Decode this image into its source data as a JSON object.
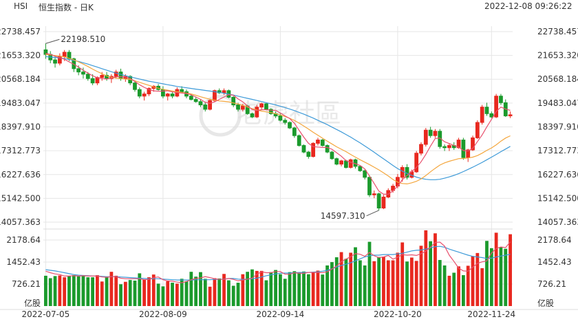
{
  "header": {
    "symbol": "HSI",
    "name": "恒生指数 - 日K",
    "datetime": "2022-12-08 09:26:22"
  },
  "watermark": "老虎社區",
  "colors": {
    "up": "#e8281f",
    "down": "#1b9a2c",
    "ma5": "#e8506d",
    "ma10": "#f4a63c",
    "ma20": "#3d9ad8",
    "grid": "#e6e6e6"
  },
  "chart_data": [
    {
      "type": "candlestick",
      "title": "",
      "y_ticks": [
        "22738.457",
        "21653.320",
        "20568.184",
        "19483.047",
        "18397.910",
        "17312.773",
        "16227.636",
        "15142.500",
        "14057.363"
      ],
      "ylim": [
        14057.363,
        22738.457
      ],
      "x_tick_labels": [
        "2022-07-05",
        "2022-08-09",
        "2022-09-14",
        "2022-10-20",
        "2022-11-24"
      ],
      "annotations": [
        {
          "text": "22198.510",
          "value": 22198.51,
          "at_index": 0
        },
        {
          "text": "14597.310",
          "value": 14597.31,
          "at_index": 71
        }
      ],
      "moving_averages": [
        "MA5",
        "MA10",
        "MA20"
      ],
      "candles_ohlc": [
        [
          21910,
          22198.51,
          21500,
          21700
        ],
        [
          21700,
          21850,
          21300,
          21450
        ],
        [
          21450,
          21600,
          21100,
          21300
        ],
        [
          21300,
          21750,
          21200,
          21600
        ],
        [
          21600,
          21900,
          21400,
          21800
        ],
        [
          21800,
          21900,
          21400,
          21500
        ],
        [
          21500,
          21550,
          20900,
          21050
        ],
        [
          21050,
          21200,
          20750,
          20900
        ],
        [
          20900,
          21100,
          20600,
          20800
        ],
        [
          20800,
          20900,
          20500,
          20600
        ],
        [
          20600,
          20800,
          20300,
          20400
        ],
        [
          20400,
          20700,
          20300,
          20650
        ],
        [
          20650,
          20900,
          20500,
          20750
        ],
        [
          20750,
          20900,
          20500,
          20600
        ],
        [
          20600,
          20800,
          20400,
          20700
        ],
        [
          20700,
          21000,
          20600,
          20900
        ],
        [
          20900,
          21050,
          20500,
          20600
        ],
        [
          20600,
          20800,
          20450,
          20700
        ],
        [
          20700,
          20750,
          20300,
          20400
        ],
        [
          20400,
          20500,
          20000,
          20100
        ],
        [
          20100,
          20200,
          19700,
          19800
        ],
        [
          19800,
          20000,
          19600,
          19900
        ],
        [
          19900,
          20200,
          19800,
          20150
        ],
        [
          20150,
          20300,
          20000,
          20250
        ],
        [
          20250,
          20350,
          20050,
          20100
        ],
        [
          20100,
          20250,
          19700,
          19800
        ],
        [
          19800,
          19950,
          19600,
          19900
        ],
        [
          19900,
          20000,
          19700,
          19800
        ],
        [
          19800,
          20200,
          19750,
          20100
        ],
        [
          20100,
          20250,
          19950,
          20000
        ],
        [
          20000,
          20100,
          19700,
          19800
        ],
        [
          19800,
          19900,
          19600,
          19650
        ],
        [
          19650,
          19750,
          19500,
          19550
        ],
        [
          19550,
          19650,
          19300,
          19400
        ],
        [
          19400,
          19500,
          19100,
          19200
        ],
        [
          19200,
          19650,
          19150,
          19600
        ],
        [
          19600,
          20100,
          19550,
          20050
        ],
        [
          20050,
          20150,
          19900,
          19950
        ],
        [
          19950,
          20150,
          19850,
          20050
        ],
        [
          20050,
          20100,
          19700,
          19750
        ],
        [
          19750,
          19800,
          19300,
          19400
        ],
        [
          19400,
          19500,
          19100,
          19200
        ],
        [
          19200,
          19450,
          19100,
          19350
        ],
        [
          19350,
          19400,
          18950,
          19000
        ],
        [
          19000,
          19050,
          18800,
          18850
        ],
        [
          18850,
          19400,
          18800,
          19300
        ],
        [
          19300,
          19500,
          19200,
          19450
        ],
        [
          19450,
          19500,
          19150,
          19200
        ],
        [
          19200,
          19250,
          18950,
          19000
        ],
        [
          19000,
          19100,
          18800,
          18900
        ],
        [
          18900,
          19000,
          18650,
          18700
        ],
        [
          18700,
          18800,
          18500,
          18600
        ],
        [
          18600,
          18650,
          18300,
          18350
        ],
        [
          18350,
          18400,
          17900,
          18000
        ],
        [
          18000,
          18050,
          17500,
          17550
        ],
        [
          17550,
          17600,
          17200,
          17250
        ],
        [
          17250,
          17300,
          16950,
          17050
        ],
        [
          17050,
          17700,
          17000,
          17650
        ],
        [
          17650,
          17900,
          17550,
          17800
        ],
        [
          17800,
          17850,
          17500,
          17550
        ],
        [
          17550,
          17600,
          17200,
          17250
        ],
        [
          17250,
          17300,
          16900,
          16950
        ],
        [
          16950,
          17000,
          16650,
          16700
        ],
        [
          16700,
          16900,
          16600,
          16850
        ],
        [
          16850,
          16900,
          16500,
          16550
        ],
        [
          16550,
          16950,
          16500,
          16900
        ],
        [
          16900,
          16950,
          16500,
          16600
        ],
        [
          16600,
          16650,
          16350,
          16400
        ],
        [
          16400,
          16450,
          16000,
          16100
        ],
        [
          16100,
          16200,
          15200,
          15300
        ],
        [
          15300,
          15500,
          15150,
          15350
        ],
        [
          15350,
          15400,
          14597.31,
          14700
        ],
        [
          14700,
          15300,
          14650,
          15200
        ],
        [
          15200,
          15600,
          15150,
          15500
        ],
        [
          15500,
          15800,
          15400,
          15700
        ],
        [
          15700,
          16250,
          15600,
          16100
        ],
        [
          16100,
          16650,
          15900,
          16550
        ],
        [
          16550,
          16700,
          16000,
          16100
        ],
        [
          16100,
          16450,
          16050,
          16350
        ],
        [
          16350,
          17300,
          16300,
          17200
        ],
        [
          17200,
          17700,
          17100,
          17600
        ],
        [
          17600,
          18350,
          17500,
          18250
        ],
        [
          18250,
          18400,
          17900,
          18000
        ],
        [
          18000,
          18300,
          17900,
          18200
        ],
        [
          18200,
          18300,
          17400,
          17500
        ],
        [
          17500,
          17600,
          17300,
          17450
        ],
        [
          17450,
          17650,
          17300,
          17550
        ],
        [
          17550,
          17700,
          17350,
          17450
        ],
        [
          17450,
          17900,
          17400,
          17800
        ],
        [
          17800,
          17900,
          16900,
          17000
        ],
        [
          17000,
          17400,
          16800,
          17350
        ],
        [
          17350,
          18000,
          17300,
          17900
        ],
        [
          17900,
          18700,
          17850,
          18600
        ],
        [
          18600,
          19400,
          18500,
          19300
        ],
        [
          19300,
          19500,
          18900,
          19000
        ],
        [
          19000,
          19100,
          18800,
          18850
        ],
        [
          18850,
          19900,
          18800,
          19800
        ],
        [
          19800,
          19900,
          19400,
          19500
        ],
        [
          19500,
          19650,
          18850,
          18900
        ],
        [
          18900,
          19100,
          18800,
          18950
        ]
      ],
      "ma5_values": [
        21750,
        21700,
        21620,
        21550,
        21480,
        21360,
        21250,
        21120,
        20980,
        20850,
        20730,
        20640,
        20600,
        20580,
        20620,
        20680,
        20690,
        20670,
        20600,
        20470,
        20320,
        20200,
        20100,
        20040,
        20020,
        20030,
        20040,
        19990,
        19960,
        19940,
        19920,
        19860,
        19760,
        19650,
        19520,
        19470,
        19540,
        19650,
        19760,
        19870,
        19840,
        19670,
        19540,
        19350,
        19190,
        19140,
        19180,
        19180,
        19160,
        19150,
        19030,
        18900,
        18780,
        18560,
        18240,
        17930,
        17650,
        17500,
        17480,
        17460,
        17460,
        17380,
        17220,
        17060,
        16860,
        16780,
        16720,
        16640,
        16480,
        16160,
        15820,
        15470,
        15330,
        15330,
        15480,
        15700,
        15990,
        16190,
        16360,
        16550,
        16810,
        17140,
        17520,
        17870,
        17890,
        17720,
        17640,
        17550,
        17480,
        17320,
        17300,
        17420,
        17730,
        18030,
        18400,
        18740,
        19100,
        19300,
        19210,
        19150
      ],
      "ma10_values": [
        21700,
        21680,
        21650,
        21620,
        21590,
        21520,
        21450,
        21360,
        21260,
        21150,
        21030,
        20920,
        20820,
        20720,
        20660,
        20620,
        20600,
        20580,
        20560,
        20500,
        20430,
        20360,
        20290,
        20220,
        20160,
        20110,
        20070,
        20030,
        20000,
        19970,
        19940,
        19900,
        19840,
        19770,
        19710,
        19660,
        19620,
        19580,
        19560,
        19540,
        19490,
        19440,
        19380,
        19300,
        19230,
        19170,
        19120,
        19080,
        19050,
        19000,
        18940,
        18870,
        18790,
        18690,
        18570,
        18440,
        18300,
        18150,
        18020,
        17880,
        17750,
        17620,
        17490,
        17380,
        17270,
        17140,
        17020,
        16900,
        16790,
        16680,
        16560,
        16440,
        16300,
        16160,
        16000,
        15880,
        15820,
        15800,
        15850,
        15920,
        16030,
        16180,
        16350,
        16510,
        16660,
        16760,
        16830,
        16890,
        16950,
        16960,
        16980,
        17020,
        17090,
        17200,
        17330,
        17440,
        17580,
        17750,
        17890,
        17990
      ],
      "ma20_values": [
        21600,
        21580,
        21560,
        21540,
        21510,
        21470,
        21430,
        21380,
        21320,
        21260,
        21190,
        21120,
        21050,
        20980,
        20910,
        20850,
        20790,
        20730,
        20680,
        20630,
        20580,
        20530,
        20480,
        20440,
        20400,
        20360,
        20320,
        20280,
        20240,
        20210,
        20180,
        20150,
        20120,
        20090,
        20060,
        20030,
        20000,
        19970,
        19930,
        19890,
        19850,
        19800,
        19750,
        19700,
        19650,
        19600,
        19550,
        19500,
        19450,
        19400,
        19340,
        19280,
        19210,
        19140,
        19060,
        18980,
        18890,
        18800,
        18700,
        18600,
        18500,
        18390,
        18280,
        18170,
        18050,
        17930,
        17800,
        17670,
        17530,
        17390,
        17240,
        17090,
        16940,
        16790,
        16640,
        16500,
        16380,
        16280,
        16190,
        16110,
        16050,
        16010,
        15990,
        15990,
        16010,
        16060,
        16120,
        16190,
        16270,
        16360,
        16460,
        16560,
        16670,
        16780,
        16900,
        17020,
        17140,
        17270,
        17390,
        17510
      ]
    },
    {
      "type": "bar",
      "title": "",
      "ylabel": "亿股",
      "y_ticks": [
        "2178.64",
        "1452.43",
        "726.21"
      ],
      "ylim": [
        0,
        2178.64
      ],
      "volumes": [
        1000,
        920,
        990,
        1010,
        950,
        990,
        1020,
        980,
        1000,
        950,
        950,
        1020,
        810,
        950,
        1130,
        1000,
        720,
        800,
        860,
        840,
        1080,
        880,
        950,
        1040,
        740,
        650,
        820,
        770,
        740,
        900,
        820,
        1130,
        970,
        1120,
        900,
        640,
        920,
        910,
        1060,
        850,
        670,
        770,
        1050,
        1130,
        1210,
        1160,
        1160,
        850,
        1120,
        1190,
        1050,
        900,
        1120,
        1150,
        1100,
        1140,
        1050,
        1100,
        1170,
        1040,
        1340,
        1450,
        1610,
        1780,
        1560,
        1760,
        1940,
        1510,
        1340,
        2120,
        1480,
        1620,
        1630,
        1510,
        1510,
        1760,
        2100,
        1470,
        1600,
        1490,
        1990,
        2500,
        2140,
        2400,
        1520,
        1340,
        1000,
        1100,
        1310,
        1020,
        1330,
        1650,
        1750,
        1250,
        2150,
        1910,
        2420,
        1950,
        1890,
        2370
      ],
      "vol_ma5_values": [
        1150,
        1100,
        1060,
        1040,
        990,
        990,
        1000,
        990,
        1000,
        990,
        990,
        990,
        960,
        950,
        970,
        970,
        920,
        900,
        900,
        900,
        900,
        870,
        880,
        940,
        960,
        870,
        830,
        820,
        790,
        770,
        810,
        870,
        910,
        930,
        970,
        940,
        900,
        880,
        880,
        910,
        880,
        830,
        860,
        890,
        920,
        1050,
        1130,
        1100,
        1100,
        1140,
        1140,
        1050,
        1050,
        1100,
        1080,
        1080,
        1110,
        1110,
        1110,
        1100,
        1130,
        1220,
        1320,
        1470,
        1550,
        1630,
        1730,
        1710,
        1640,
        1770,
        1660,
        1600,
        1620,
        1670,
        1550,
        1610,
        1700,
        1680,
        1690,
        1670,
        1730,
        1810,
        1940,
        2100,
        2110,
        1980,
        1680,
        1470,
        1250,
        1160,
        1150,
        1280,
        1410,
        1460,
        1490,
        1750,
        1900,
        1950,
        1930,
        2120
      ],
      "vol_ma10_values": [
        1200,
        1180,
        1160,
        1130,
        1100,
        1070,
        1040,
        1020,
        1010,
        1000,
        990,
        990,
        980,
        970,
        970,
        970,
        960,
        950,
        940,
        930,
        920,
        910,
        900,
        900,
        900,
        890,
        880,
        870,
        860,
        860,
        860,
        860,
        870,
        870,
        870,
        870,
        880,
        880,
        890,
        910,
        910,
        890,
        880,
        890,
        900,
        920,
        960,
        1000,
        1030,
        1060,
        1080,
        1090,
        1090,
        1100,
        1110,
        1110,
        1110,
        1120,
        1130,
        1150,
        1180,
        1230,
        1290,
        1340,
        1380,
        1430,
        1490,
        1560,
        1620,
        1660,
        1680,
        1680,
        1700,
        1700,
        1700,
        1720,
        1740,
        1780,
        1820,
        1840,
        1850,
        1880,
        1920,
        1960,
        1970,
        1940,
        1880,
        1830,
        1780,
        1730,
        1680,
        1640,
        1620,
        1600,
        1570,
        1580,
        1620,
        1650,
        1680,
        1710
      ]
    }
  ]
}
